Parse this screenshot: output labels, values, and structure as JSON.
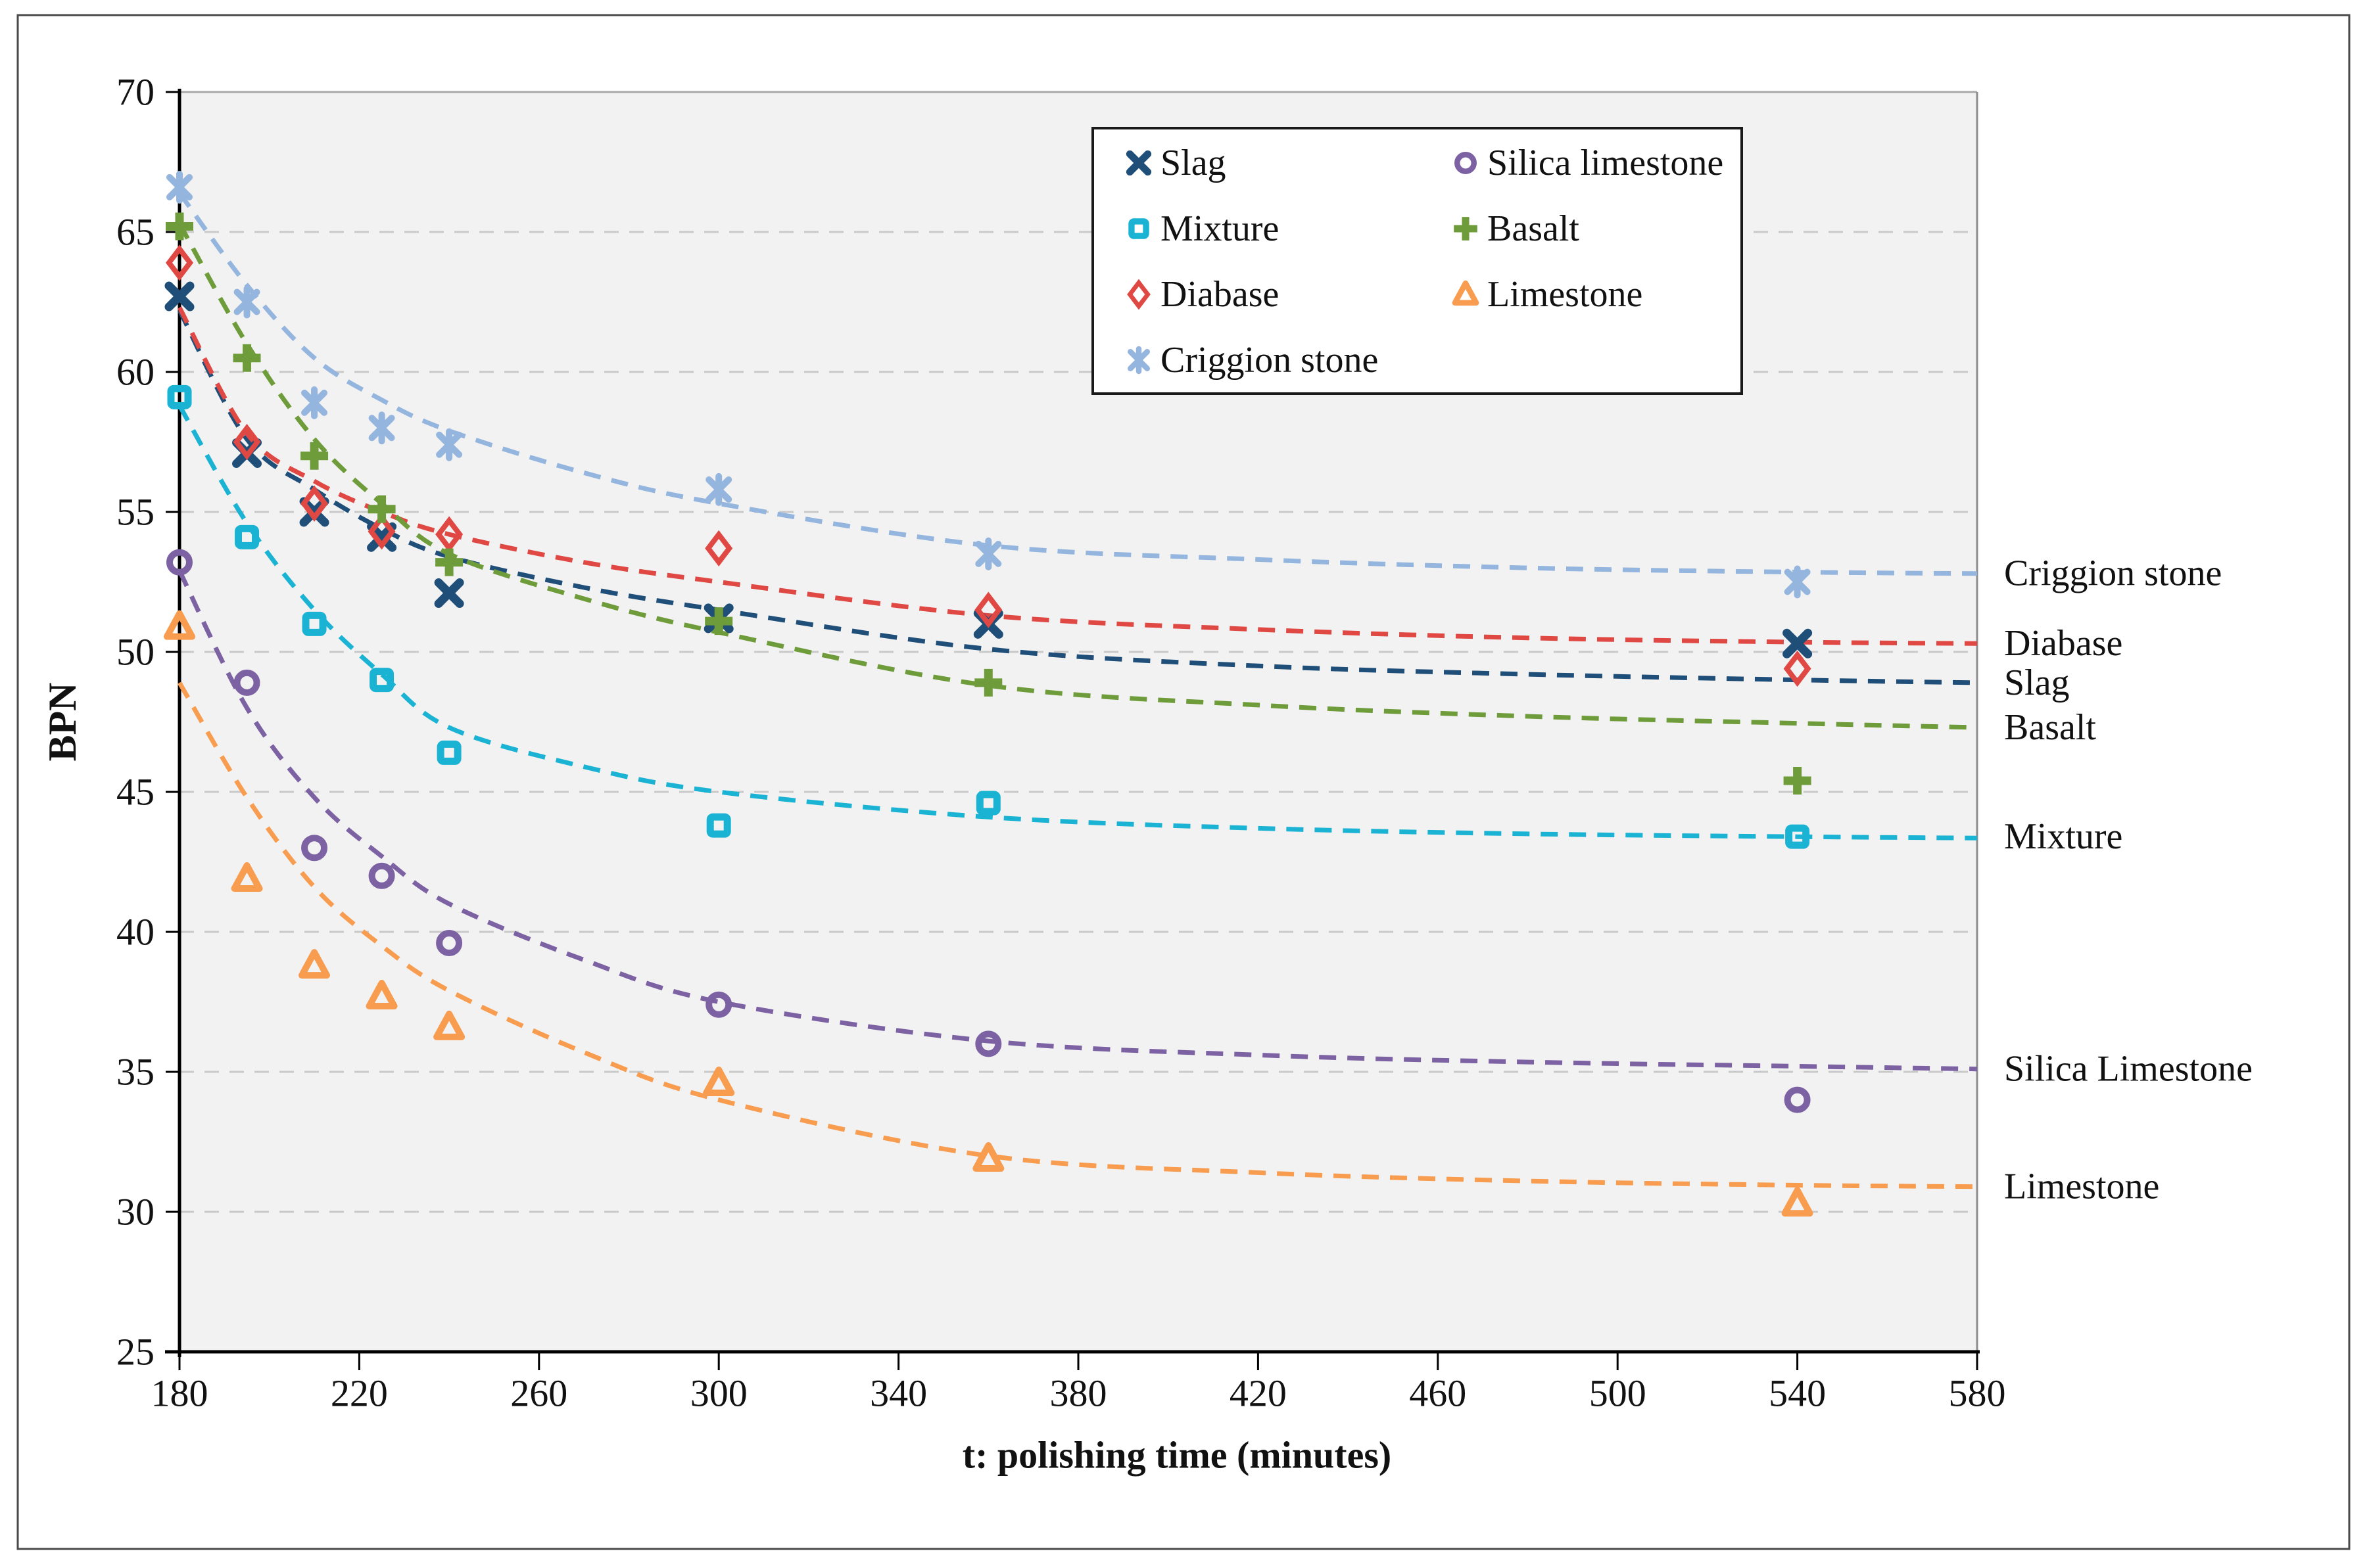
{
  "chart_data": {
    "type": "scatter",
    "title": "",
    "xlabel": "t: polishing time (minutes)",
    "ylabel": "BPN",
    "xlim": [
      180,
      580
    ],
    "ylim": [
      25,
      70
    ],
    "xticks": [
      "180",
      "220",
      "260",
      "300",
      "340",
      "380",
      "420",
      "460",
      "500",
      "540",
      "580"
    ],
    "yticks": [
      "25",
      "30",
      "35",
      "40",
      "45",
      "50",
      "55",
      "60",
      "65",
      "70"
    ],
    "grid": "horizontal dashed gridlines every 5 BPN",
    "plot_bg": "#f2f2f2",
    "gridline_color": "#c9c9c9",
    "axis_color": "#000000",
    "legend_position": "top-center boxed, 2 columns",
    "x": [
      180,
      195,
      210,
      225,
      240,
      300,
      360,
      540
    ],
    "series": [
      {
        "id": "slag",
        "name": "Slag",
        "marker": "x",
        "color": "#1F4E79",
        "values": [
          62.7,
          57.1,
          55.0,
          54.1,
          52.1,
          51.2,
          51.0,
          50.3
        ],
        "trend": [
          [
            180,
            62.2
          ],
          [
            195,
            57.6
          ],
          [
            210,
            55.8
          ],
          [
            225,
            54.4
          ],
          [
            240,
            53.4
          ],
          [
            270,
            52.3
          ],
          [
            300,
            51.5
          ],
          [
            360,
            50.1
          ],
          [
            420,
            49.5
          ],
          [
            480,
            49.2
          ],
          [
            540,
            49.0
          ],
          [
            580,
            48.9
          ]
        ],
        "right_label": "Slag",
        "right_label_y": 48.9
      },
      {
        "id": "mixture",
        "name": "Mixture",
        "marker": "square",
        "color": "#1BB3D3",
        "values": [
          59.1,
          54.1,
          51.0,
          49.0,
          46.4,
          43.8,
          44.6,
          43.4
        ],
        "trend": [
          [
            180,
            58.8
          ],
          [
            195,
            54.6
          ],
          [
            210,
            51.5
          ],
          [
            225,
            49.2
          ],
          [
            240,
            47.3
          ],
          [
            270,
            45.9
          ],
          [
            300,
            45.0
          ],
          [
            360,
            44.1
          ],
          [
            420,
            43.7
          ],
          [
            480,
            43.5
          ],
          [
            540,
            43.4
          ],
          [
            580,
            43.35
          ]
        ],
        "right_label": "Mixture",
        "right_label_y": 43.4
      },
      {
        "id": "diabase",
        "name": "Diabase",
        "marker": "diamond",
        "color": "#DF4843",
        "values": [
          63.9,
          57.5,
          55.3,
          54.3,
          54.2,
          53.7,
          51.5,
          49.4
        ],
        "trend": [
          [
            180,
            62.3
          ],
          [
            195,
            57.8
          ],
          [
            210,
            56.1
          ],
          [
            225,
            55.0
          ],
          [
            240,
            54.2
          ],
          [
            270,
            53.2
          ],
          [
            300,
            52.5
          ],
          [
            360,
            51.3
          ],
          [
            420,
            50.8
          ],
          [
            480,
            50.5
          ],
          [
            540,
            50.35
          ],
          [
            580,
            50.3
          ]
        ],
        "right_label": "Diabase",
        "right_label_y": 50.3
      },
      {
        "id": "criggion",
        "name": "Criggion stone",
        "marker": "star6",
        "color": "#94B5DD",
        "values": [
          66.6,
          62.5,
          58.9,
          58.0,
          57.4,
          55.8,
          53.5,
          52.5
        ],
        "trend": [
          [
            180,
            66.4
          ],
          [
            195,
            63.1
          ],
          [
            210,
            60.5
          ],
          [
            225,
            59.0
          ],
          [
            240,
            57.9
          ],
          [
            270,
            56.4
          ],
          [
            300,
            55.3
          ],
          [
            360,
            53.8
          ],
          [
            420,
            53.3
          ],
          [
            480,
            53.0
          ],
          [
            540,
            52.85
          ],
          [
            580,
            52.8
          ]
        ],
        "right_label": "Criggion stone",
        "right_label_y": 52.8
      },
      {
        "id": "silica",
        "name": "Silica limestone",
        "marker": "circle",
        "color": "#7C61A3",
        "values": [
          53.2,
          48.9,
          43.0,
          42.0,
          39.6,
          37.4,
          36.0,
          34.0
        ],
        "trend": [
          [
            180,
            52.9
          ],
          [
            195,
            48.0
          ],
          [
            210,
            44.8
          ],
          [
            225,
            42.7
          ],
          [
            240,
            41.0
          ],
          [
            270,
            39.0
          ],
          [
            300,
            37.5
          ],
          [
            360,
            36.1
          ],
          [
            420,
            35.6
          ],
          [
            480,
            35.35
          ],
          [
            540,
            35.2
          ],
          [
            580,
            35.1
          ]
        ],
        "right_label": "Silica Limestone",
        "right_label_y": 35.1
      },
      {
        "id": "basalt",
        "name": "Basalt",
        "marker": "plus",
        "color": "#6F9C3A",
        "values": [
          65.2,
          60.5,
          57.0,
          55.1,
          53.2,
          51.1,
          48.9,
          45.4
        ],
        "trend": [
          [
            180,
            65.3
          ],
          [
            195,
            61.0
          ],
          [
            210,
            57.6
          ],
          [
            225,
            55.3
          ],
          [
            240,
            53.5
          ],
          [
            270,
            51.9
          ],
          [
            300,
            50.7
          ],
          [
            360,
            48.8
          ],
          [
            420,
            48.1
          ],
          [
            480,
            47.7
          ],
          [
            540,
            47.45
          ],
          [
            580,
            47.3
          ]
        ],
        "right_label": "Basalt",
        "right_label_y": 47.3
      },
      {
        "id": "limestone",
        "name": "Limestone",
        "marker": "triangle",
        "color": "#F89C4F",
        "values": [
          50.9,
          41.9,
          38.8,
          37.7,
          36.6,
          34.6,
          31.9,
          30.3
        ],
        "trend": [
          [
            180,
            48.9
          ],
          [
            195,
            44.8
          ],
          [
            210,
            41.6
          ],
          [
            225,
            39.5
          ],
          [
            240,
            37.9
          ],
          [
            270,
            35.7
          ],
          [
            300,
            34.0
          ],
          [
            360,
            32.0
          ],
          [
            420,
            31.4
          ],
          [
            480,
            31.1
          ],
          [
            540,
            30.95
          ],
          [
            580,
            30.9
          ]
        ],
        "right_label": "Limestone",
        "right_label_y": 30.9
      }
    ],
    "legend": {
      "column1": [
        0,
        1,
        2,
        3
      ],
      "column2": [
        4,
        5,
        6
      ]
    }
  }
}
